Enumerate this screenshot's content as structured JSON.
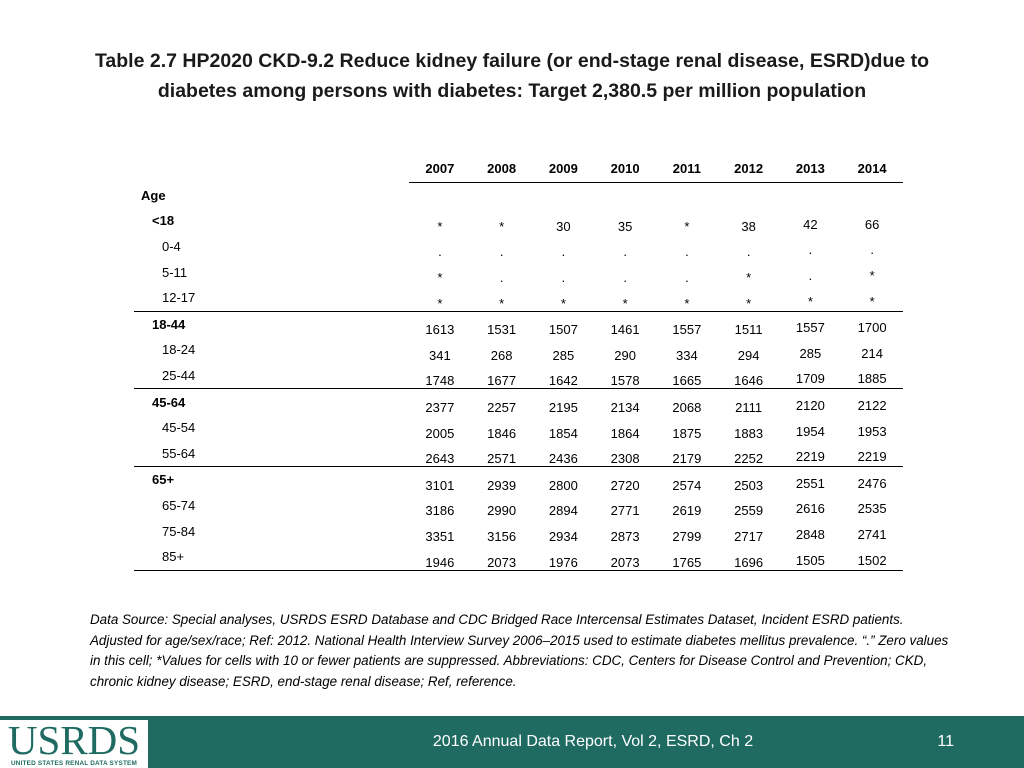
{
  "title": {
    "line1": "Table 2.7  HP2020 CKD-9.2 Reduce kidney failure (or end-stage renal disease, ESRD)due to",
    "line2": "diabetes among persons with diabetes: Target 2,380.5 per million population"
  },
  "table": {
    "years": [
      "2007",
      "2008",
      "2009",
      "2010",
      "2011",
      "2012",
      "2013",
      "2014"
    ],
    "section_label": "Age",
    "rows": [
      {
        "label": "<18",
        "values": [
          "*",
          "*",
          "30",
          "35",
          "*",
          "38",
          "42",
          "66"
        ]
      },
      {
        "label": "0-4",
        "values": [
          ".",
          ".",
          ".",
          ".",
          ".",
          ".",
          ".",
          "."
        ]
      },
      {
        "label": "5-11",
        "values": [
          "*",
          ".",
          ".",
          ".",
          ".",
          "*",
          ".",
          "*"
        ]
      },
      {
        "label": "12-17",
        "values": [
          "*",
          "*",
          "*",
          "*",
          "*",
          "*",
          "*",
          "*"
        ]
      },
      {
        "label": "18-44",
        "values": [
          "1613",
          "1531",
          "1507",
          "1461",
          "1557",
          "1511",
          "1557",
          "1700"
        ]
      },
      {
        "label": "18-24",
        "values": [
          "341",
          "268",
          "285",
          "290",
          "334",
          "294",
          "285",
          "214"
        ]
      },
      {
        "label": "25-44",
        "values": [
          "1748",
          "1677",
          "1642",
          "1578",
          "1665",
          "1646",
          "1709",
          "1885"
        ]
      },
      {
        "label": "45-64",
        "values": [
          "2377",
          "2257",
          "2195",
          "2134",
          "2068",
          "2111",
          "2120",
          "2122"
        ]
      },
      {
        "label": "45-54",
        "values": [
          "2005",
          "1846",
          "1854",
          "1864",
          "1875",
          "1883",
          "1954",
          "1953"
        ]
      },
      {
        "label": "55-64",
        "values": [
          "2643",
          "2571",
          "2436",
          "2308",
          "2179",
          "2252",
          "2219",
          "2219"
        ]
      },
      {
        "label": "65+",
        "values": [
          "3101",
          "2939",
          "2800",
          "2720",
          "2574",
          "2503",
          "2551",
          "2476"
        ]
      },
      {
        "label": "65-74",
        "values": [
          "3186",
          "2990",
          "2894",
          "2771",
          "2619",
          "2559",
          "2616",
          "2535"
        ]
      },
      {
        "label": "75-84",
        "values": [
          "3351",
          "3156",
          "2934",
          "2873",
          "2799",
          "2717",
          "2848",
          "2741"
        ]
      },
      {
        "label": "85+",
        "values": [
          "1946",
          "2073",
          "1976",
          "2073",
          "1765",
          "1696",
          "1505",
          "1502"
        ]
      }
    ]
  },
  "footnote": "Data Source: Special analyses, USRDS ESRD Database and CDC Bridged Race Intercensal Estimates Dataset, Incident ESRD patients. Adjusted for age/sex/race; Ref: 2012. National Health Interview Survey 2006–2015 used to estimate diabetes mellitus prevalence. “.” Zero values in this cell; *Values for cells with 10 or fewer patients are suppressed. Abbreviations: CDC, Centers for Disease Control and Prevention; CKD, chronic kidney disease; ESRD, end-stage renal disease; Ref, reference.",
  "footer": {
    "report": "2016 Annual Data Report, Vol 2, ESRD, Ch 2",
    "page": "11",
    "logo_word": "USRDS",
    "logo_sub": "UNITED STATES RENAL DATA SYSTEM",
    "brand_color": "#1f6b62"
  }
}
